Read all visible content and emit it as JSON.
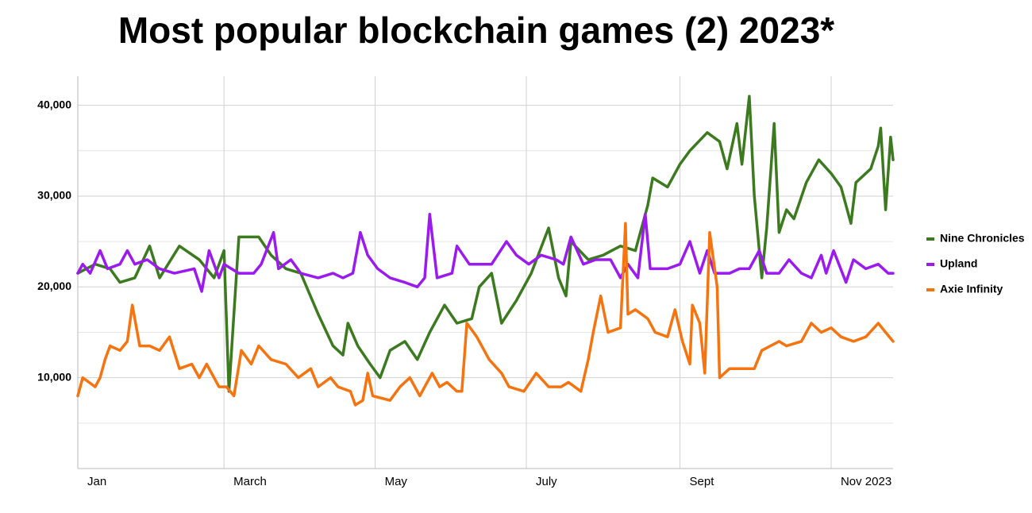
{
  "chart_data": {
    "type": "line",
    "title": "Most popular blockchain games (2) 2023*",
    "xlim": [
      0,
      329
    ],
    "xticks": [
      {
        "value": 0,
        "label": "Jan"
      },
      {
        "value": 59,
        "label": "March"
      },
      {
        "value": 120,
        "label": "May"
      },
      {
        "value": 181,
        "label": "July"
      },
      {
        "value": 243,
        "label": "Sept"
      },
      {
        "value": 304,
        "label": "Nov 2023"
      }
    ],
    "ylim": [
      0,
      43200
    ],
    "yticks": [
      {
        "value": 10000,
        "label": "10,000"
      },
      {
        "value": 20000,
        "label": "20,000"
      },
      {
        "value": 30000,
        "label": "30,000"
      },
      {
        "value": 40000,
        "label": "40,000"
      }
    ],
    "yminor": [
      5000,
      15000,
      25000,
      35000
    ],
    "grid": true,
    "legend": "right",
    "series": [
      {
        "name": "Nine Chronicles",
        "color": "#3c7a1f",
        "x": [
          0,
          7,
          13,
          17,
          23,
          29,
          33,
          41,
          49,
          55,
          59,
          61,
          65,
          73,
          78,
          84,
          90,
          97,
          103,
          107,
          109,
          113,
          118,
          122,
          126,
          132,
          137,
          142,
          148,
          153,
          159,
          162,
          167,
          171,
          177,
          183,
          190,
          194,
          197,
          199,
          206,
          212,
          219,
          225,
          230,
          232,
          238,
          243,
          247,
          254,
          259,
          262,
          266,
          268,
          271,
          273,
          276,
          278,
          281,
          283,
          286,
          289,
          294,
          299,
          304,
          308,
          312,
          314,
          320,
          323,
          324,
          326,
          328,
          329
        ],
        "values": [
          21500,
          22500,
          22000,
          20500,
          21000,
          24500,
          21000,
          24500,
          23000,
          21000,
          24000,
          8500,
          25500,
          25500,
          23500,
          22000,
          21500,
          17000,
          13500,
          12500,
          16000,
          13500,
          11500,
          10000,
          13000,
          14000,
          12000,
          15000,
          18000,
          16000,
          16500,
          20000,
          21500,
          16000,
          18500,
          21500,
          26500,
          21000,
          19000,
          25000,
          23000,
          23500,
          24500,
          24000,
          29000,
          32000,
          31000,
          33500,
          35000,
          37000,
          36000,
          33000,
          38000,
          33500,
          41000,
          30000,
          21000,
          26500,
          38000,
          26000,
          28500,
          27500,
          31500,
          34000,
          32500,
          31000,
          27000,
          31500,
          33000,
          35500,
          37500,
          28500,
          36500,
          34000
        ]
      },
      {
        "name": "Upland",
        "color": "#9b1af0",
        "x": [
          0,
          2,
          5,
          9,
          12,
          17,
          20,
          23,
          28,
          33,
          39,
          47,
          50,
          53,
          57,
          59,
          65,
          71,
          74,
          79,
          81,
          86,
          90,
          97,
          103,
          107,
          111,
          114,
          117,
          121,
          126,
          132,
          137,
          140,
          142,
          145,
          151,
          153,
          158,
          162,
          167,
          173,
          177,
          182,
          187,
          193,
          196,
          199,
          204,
          209,
          215,
          219,
          222,
          226,
          229,
          231,
          238,
          243,
          247,
          251,
          254,
          257,
          263,
          267,
          271,
          275,
          278,
          283,
          287,
          292,
          296,
          300,
          302,
          305,
          310,
          313,
          318,
          323,
          327,
          329
        ],
        "values": [
          21500,
          22500,
          21500,
          24000,
          22000,
          22500,
          24000,
          22500,
          23000,
          22000,
          21500,
          22000,
          19500,
          24000,
          21000,
          22500,
          21500,
          21500,
          22500,
          26000,
          22000,
          23000,
          21500,
          21000,
          21500,
          21000,
          21500,
          26000,
          23500,
          22000,
          21000,
          20500,
          20000,
          21000,
          28000,
          21000,
          21500,
          24500,
          22500,
          22500,
          22500,
          25000,
          23500,
          22500,
          23500,
          23000,
          22500,
          25500,
          22500,
          23000,
          23000,
          21000,
          22500,
          21000,
          28000,
          22000,
          22000,
          22500,
          25000,
          21500,
          24000,
          21500,
          21500,
          22000,
          22000,
          24000,
          21500,
          21500,
          23000,
          21500,
          21000,
          23500,
          21500,
          24000,
          20500,
          23000,
          22000,
          22500,
          21500,
          21500
        ]
      },
      {
        "name": "Axie Infinity",
        "color": "#f57410",
        "x": [
          0,
          2,
          7,
          9,
          11,
          13,
          17,
          20,
          22,
          25,
          29,
          33,
          37,
          41,
          46,
          49,
          52,
          57,
          60,
          63,
          66,
          70,
          73,
          78,
          84,
          89,
          94,
          97,
          102,
          105,
          110,
          112,
          115,
          117,
          119,
          126,
          130,
          134,
          138,
          143,
          146,
          149,
          153,
          155,
          157,
          161,
          166,
          171,
          174,
          180,
          185,
          190,
          195,
          198,
          203,
          206,
          208,
          211,
          214,
          219,
          221,
          222,
          225,
          230,
          233,
          238,
          241,
          244,
          247,
          248,
          251,
          253,
          255,
          258,
          259,
          263,
          268,
          273,
          276,
          283,
          286,
          292,
          296,
          300,
          304,
          308,
          313,
          318,
          323,
          326,
          329
        ],
        "values": [
          8000,
          10000,
          9000,
          10000,
          12000,
          13500,
          13000,
          14000,
          18000,
          13500,
          13500,
          13000,
          14500,
          11000,
          11500,
          10000,
          11500,
          9000,
          9000,
          8000,
          13000,
          11500,
          13500,
          12000,
          11500,
          10000,
          11000,
          9000,
          10000,
          9000,
          8500,
          7000,
          7500,
          10500,
          8000,
          7500,
          9000,
          10000,
          8000,
          10500,
          9000,
          9500,
          8500,
          8500,
          16000,
          14500,
          12000,
          10500,
          9000,
          8500,
          10500,
          9000,
          9000,
          9500,
          8500,
          12000,
          15000,
          19000,
          15000,
          15500,
          27000,
          17000,
          17500,
          16500,
          15000,
          14500,
          17500,
          14000,
          11500,
          18000,
          16000,
          10500,
          26000,
          20000,
          10000,
          11000,
          11000,
          11000,
          13000,
          14000,
          13500,
          14000,
          16000,
          15000,
          15500,
          14500,
          14000,
          14500,
          16000,
          15000,
          14000
        ]
      }
    ]
  }
}
